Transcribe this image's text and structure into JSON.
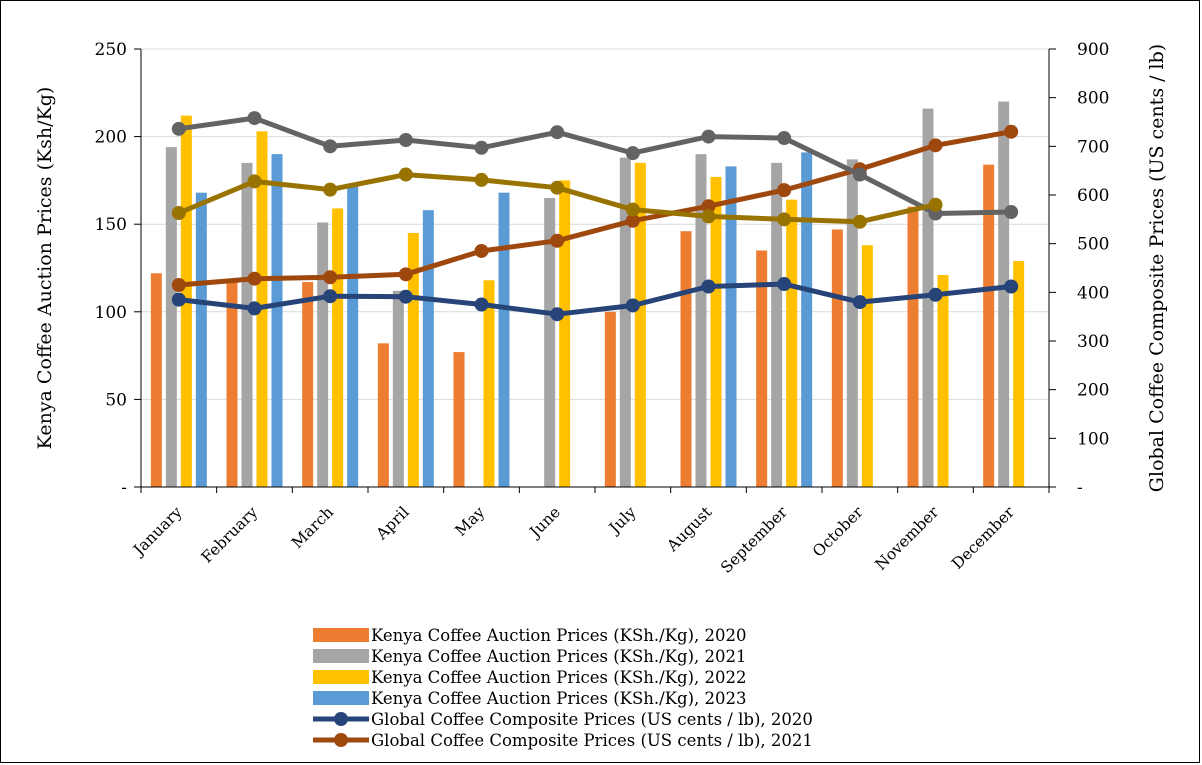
{
  "chart_data": {
    "type": "bar",
    "categories": [
      "January",
      "February",
      "March",
      "April",
      "May",
      "June",
      "July",
      "August",
      "September",
      "October",
      "November",
      "December"
    ],
    "y_left": {
      "label": "Kenya Coffee Auction Prices (Ksh/Kg)",
      "range": [
        0,
        250
      ],
      "ticks": [
        0,
        50,
        100,
        150,
        200,
        250
      ],
      "tick_labels": [
        "-",
        "50",
        "100",
        "150",
        "200",
        "250"
      ]
    },
    "y_right": {
      "label": "Global Coffee Composite Prices (US cents / lb)",
      "range": [
        0,
        900
      ],
      "ticks": [
        0,
        100,
        200,
        300,
        400,
        500,
        600,
        700,
        800,
        900
      ],
      "tick_labels": [
        "-",
        "100",
        "200",
        "300",
        "400",
        "500",
        "600",
        "700",
        "800",
        "900"
      ]
    },
    "grid": true,
    "legend_position": "bottom",
    "bar_series": [
      {
        "name": "Kenya Coffee Auction Prices (KSh./Kg), 2020",
        "color": "#ED7D31",
        "values": [
          122,
          118,
          117,
          82,
          77,
          null,
          100,
          146,
          135,
          147,
          160,
          184
        ]
      },
      {
        "name": "Kenya Coffee Auction Prices (KSh./Kg), 2021",
        "color": "#A5A5A5",
        "values": [
          194,
          185,
          151,
          112,
          null,
          165,
          188,
          190,
          185,
          187,
          216,
          220
        ]
      },
      {
        "name": "Kenya Coffee Auction Prices (KSh./Kg), 2022",
        "color": "#FFC000",
        "values": [
          212,
          203,
          159,
          145,
          118,
          175,
          185,
          177,
          164,
          138,
          121,
          129
        ]
      },
      {
        "name": "Kenya Coffee Auction Prices (KSh./Kg), 2023",
        "color": "#5B9BD5",
        "values": [
          168,
          190,
          172,
          158,
          168,
          null,
          null,
          183,
          191,
          null,
          null,
          null
        ]
      }
    ],
    "line_series": [
      {
        "name": "Global Coffee Composite Prices (US cents / lb), 2020",
        "color": "#264478",
        "values": [
          385,
          367,
          392,
          391,
          375,
          355,
          373,
          412,
          417,
          380,
          395,
          412
        ]
      },
      {
        "name": "Global Coffee Composite Prices (US cents / lb), 2021",
        "color": "#9E480E",
        "values": [
          415,
          428,
          431,
          437,
          485,
          506,
          547,
          577,
          610,
          653,
          702,
          730
        ]
      },
      {
        "name": "",
        "color": "#636363",
        "values": [
          736,
          758,
          700,
          713,
          697,
          729,
          686,
          720,
          717,
          642,
          562,
          565
        ]
      },
      {
        "name": "",
        "color": "#997300",
        "values": [
          563,
          628,
          611,
          642,
          631,
          615,
          570,
          556,
          550,
          545,
          580,
          null
        ]
      }
    ]
  }
}
